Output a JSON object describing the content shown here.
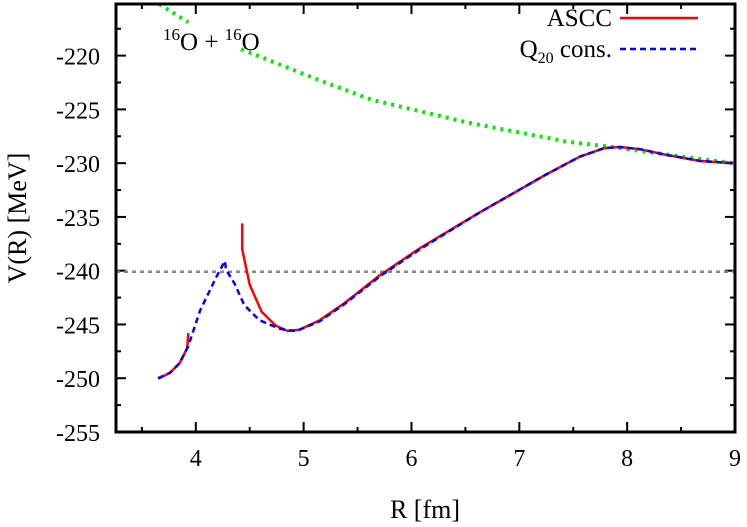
{
  "chart_data": {
    "type": "line",
    "title": "",
    "xlabel": "R [fm]",
    "ylabel": "V(R) [MeV]",
    "xlim": [
      3.26,
      9
    ],
    "ylim": [
      -255,
      -215.2
    ],
    "x_ticks": [
      "4",
      "5",
      "6",
      "7",
      "8",
      "9"
    ],
    "y_ticks": [
      "-220",
      "-225",
      "-230",
      "-235",
      "-240",
      "-245",
      "-250",
      "-255"
    ],
    "grid": false,
    "legend_position": "top-right",
    "annotation": {
      "mass1": "16",
      "sym1": "O",
      "plus": " + ",
      "mass2": "16",
      "sym2": "O"
    },
    "series": [
      {
        "name": "ASCC",
        "legend_main": "ASCC",
        "color": "#ff0000",
        "style": "solid",
        "segments": [
          [
            [
              3.65,
              -250.05
            ],
            [
              3.76,
              -249.5
            ],
            [
              3.85,
              -248.6
            ],
            [
              3.92,
              -247.2
            ],
            [
              3.93,
              -245.8
            ]
          ],
          [
            [
              4.43,
              -235.6
            ],
            [
              4.43,
              -238.0
            ],
            [
              4.5,
              -241.3
            ],
            [
              4.61,
              -243.8
            ],
            [
              4.74,
              -245.1
            ],
            [
              4.85,
              -245.6
            ],
            [
              4.96,
              -245.5
            ],
            [
              5.15,
              -244.6
            ],
            [
              5.38,
              -243.0
            ],
            [
              5.71,
              -240.4
            ],
            [
              6.08,
              -237.9
            ],
            [
              6.63,
              -234.6
            ],
            [
              7.24,
              -231.1
            ],
            [
              7.56,
              -229.4
            ],
            [
              7.79,
              -228.6
            ],
            [
              7.93,
              -228.5
            ],
            [
              8.12,
              -228.7
            ],
            [
              8.35,
              -229.2
            ],
            [
              8.68,
              -229.8
            ],
            [
              9.0,
              -230.0
            ]
          ]
        ]
      },
      {
        "name": "Q20 cons.",
        "legend_main": "Q",
        "legend_sub": "20",
        "legend_rest": " cons.",
        "color": "#0000ff",
        "style": "dashed",
        "segments": [
          [
            [
              3.65,
              -250.0
            ],
            [
              3.76,
              -249.5
            ],
            [
              3.85,
              -248.6
            ],
            [
              3.93,
              -247.0
            ],
            [
              4.04,
              -243.7
            ],
            [
              4.19,
              -240.6
            ],
            [
              4.27,
              -239.1
            ],
            [
              4.28,
              -239.9
            ],
            [
              4.36,
              -241.2
            ],
            [
              4.45,
              -243.2
            ],
            [
              4.59,
              -244.6
            ],
            [
              4.78,
              -245.4
            ],
            [
              4.9,
              -245.6
            ],
            [
              4.96,
              -245.5
            ],
            [
              5.15,
              -244.7
            ],
            [
              5.38,
              -243.1
            ],
            [
              5.71,
              -240.5
            ],
            [
              6.08,
              -238.0
            ],
            [
              6.63,
              -234.6
            ],
            [
              7.24,
              -231.1
            ],
            [
              7.56,
              -229.4
            ],
            [
              7.79,
              -228.6
            ],
            [
              7.93,
              -228.5
            ],
            [
              8.12,
              -228.7
            ],
            [
              8.35,
              -229.2
            ],
            [
              8.68,
              -229.8
            ],
            [
              9.0,
              -230.0
            ]
          ]
        ]
      },
      {
        "color": "#00ee00",
        "style": "dotted",
        "segments": [
          [
            [
              3.66,
              -215.2
            ],
            [
              3.93,
              -216.9
            ]
          ],
          [
            [
              4.42,
              -219.4
            ],
            [
              5.15,
              -222.3
            ],
            [
              5.63,
              -224.1
            ],
            [
              6.51,
              -226.2
            ],
            [
              7.44,
              -228.0
            ],
            [
              7.86,
              -228.5
            ],
            [
              8.37,
              -229.2
            ],
            [
              8.98,
              -230.0
            ]
          ]
        ]
      },
      {
        "color": "#888888",
        "style": "dotted",
        "segments": [
          [
            [
              3.26,
              -240.1
            ],
            [
              9.0,
              -240.1
            ]
          ]
        ]
      }
    ]
  }
}
